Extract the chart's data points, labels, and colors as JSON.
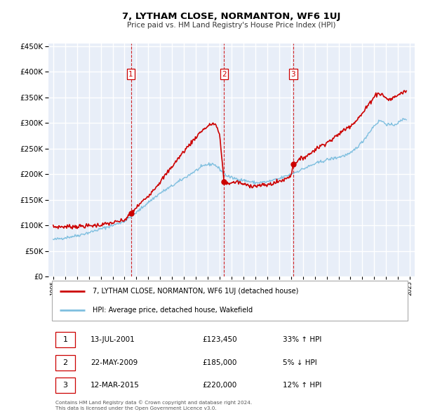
{
  "title": "7, LYTHAM CLOSE, NORMANTON, WF6 1UJ",
  "subtitle": "Price paid vs. HM Land Registry's House Price Index (HPI)",
  "legend_entry1": "7, LYTHAM CLOSE, NORMANTON, WF6 1UJ (detached house)",
  "legend_entry2": "HPI: Average price, detached house, Wakefield",
  "transactions": [
    {
      "num": 1,
      "date": "13-JUL-2001",
      "price": "£123,450",
      "change": "33% ↑ HPI",
      "year": 2001.54,
      "price_val": 123450
    },
    {
      "num": 2,
      "date": "22-MAY-2009",
      "price": "£185,000",
      "change": "5% ↓ HPI",
      "year": 2009.38,
      "price_val": 185000
    },
    {
      "num": 3,
      "date": "12-MAR-2015",
      "price": "£220,000",
      "change": "12% ↑ HPI",
      "year": 2015.19,
      "price_val": 220000
    }
  ],
  "footer_line1": "Contains HM Land Registry data © Crown copyright and database right 2024.",
  "footer_line2": "This data is licensed under the Open Government Licence v3.0.",
  "hpi_color": "#7fbfdf",
  "price_color": "#cc0000",
  "background_color": "#e8eef8",
  "grid_color": "#ffffff",
  "ylim": [
    0,
    450000
  ],
  "xlim_start": 1994.6,
  "xlim_end": 2025.4,
  "hpi_anchors": [
    [
      1995.0,
      72000
    ],
    [
      1996.0,
      76000
    ],
    [
      1997.0,
      80000
    ],
    [
      1998.0,
      86000
    ],
    [
      1999.0,
      93000
    ],
    [
      2000.0,
      100000
    ],
    [
      2001.0,
      108000
    ],
    [
      2002.0,
      125000
    ],
    [
      2003.0,
      145000
    ],
    [
      2004.0,
      163000
    ],
    [
      2005.0,
      177000
    ],
    [
      2006.0,
      192000
    ],
    [
      2007.0,
      207000
    ],
    [
      2007.8,
      218000
    ],
    [
      2008.5,
      220000
    ],
    [
      2009.0,
      210000
    ],
    [
      2009.5,
      198000
    ],
    [
      2010.0,
      193000
    ],
    [
      2011.0,
      188000
    ],
    [
      2012.0,
      183000
    ],
    [
      2013.0,
      185000
    ],
    [
      2014.0,
      191000
    ],
    [
      2015.0,
      200000
    ],
    [
      2016.0,
      210000
    ],
    [
      2017.0,
      220000
    ],
    [
      2018.0,
      228000
    ],
    [
      2019.0,
      233000
    ],
    [
      2020.0,
      240000
    ],
    [
      2021.0,
      263000
    ],
    [
      2022.0,
      295000
    ],
    [
      2022.5,
      305000
    ],
    [
      2023.0,
      298000
    ],
    [
      2023.5,
      295000
    ],
    [
      2024.0,
      300000
    ],
    [
      2024.5,
      308000
    ]
  ],
  "prop_anchors": [
    [
      1995.0,
      97000
    ],
    [
      1996.0,
      97500
    ],
    [
      1997.0,
      98000
    ],
    [
      1998.0,
      99000
    ],
    [
      1999.0,
      101000
    ],
    [
      2000.0,
      105000
    ],
    [
      2001.0,
      110000
    ],
    [
      2001.54,
      123450
    ],
    [
      2002.0,
      135000
    ],
    [
      2003.0,
      158000
    ],
    [
      2004.0,
      185000
    ],
    [
      2005.0,
      215000
    ],
    [
      2006.0,
      245000
    ],
    [
      2007.0,
      272000
    ],
    [
      2007.5,
      285000
    ],
    [
      2008.0,
      293000
    ],
    [
      2008.4,
      299000
    ],
    [
      2008.7,
      296000
    ],
    [
      2009.0,
      275000
    ],
    [
      2009.38,
      185000
    ],
    [
      2009.6,
      182000
    ],
    [
      2010.0,
      183000
    ],
    [
      2010.5,
      185000
    ],
    [
      2011.0,
      180000
    ],
    [
      2011.5,
      178000
    ],
    [
      2012.0,
      177000
    ],
    [
      2012.5,
      178000
    ],
    [
      2013.0,
      179000
    ],
    [
      2013.5,
      182000
    ],
    [
      2014.0,
      186000
    ],
    [
      2014.5,
      190000
    ],
    [
      2015.0,
      198000
    ],
    [
      2015.19,
      220000
    ],
    [
      2015.5,
      225000
    ],
    [
      2016.0,
      232000
    ],
    [
      2016.5,
      238000
    ],
    [
      2017.0,
      248000
    ],
    [
      2017.5,
      255000
    ],
    [
      2018.0,
      262000
    ],
    [
      2018.5,
      268000
    ],
    [
      2019.0,
      278000
    ],
    [
      2019.5,
      287000
    ],
    [
      2020.0,
      295000
    ],
    [
      2020.5,
      305000
    ],
    [
      2021.0,
      318000
    ],
    [
      2021.5,
      335000
    ],
    [
      2022.0,
      352000
    ],
    [
      2022.3,
      358000
    ],
    [
      2022.7,
      355000
    ],
    [
      2023.0,
      348000
    ],
    [
      2023.3,
      345000
    ],
    [
      2023.7,
      350000
    ],
    [
      2024.0,
      355000
    ],
    [
      2024.3,
      358000
    ],
    [
      2024.6,
      362000
    ]
  ]
}
